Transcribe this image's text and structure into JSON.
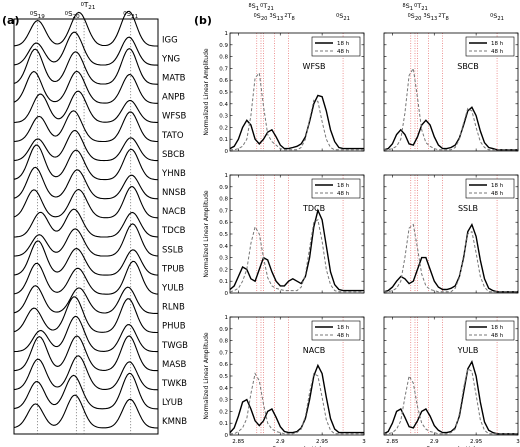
{
  "panels": {
    "a": {
      "label": "(a)"
    },
    "b": {
      "label": "(b)"
    }
  },
  "modes_a": [
    {
      "n": "0",
      "l": "S",
      "s": "19",
      "freq": 2.69
    },
    {
      "n": "0",
      "l": "S",
      "s": "20",
      "freq": 2.79
    },
    {
      "n": "0",
      "l": "T",
      "s": "21",
      "freq": 2.81
    },
    {
      "n": "0",
      "l": "S",
      "s": "21",
      "freq": 2.93
    }
  ],
  "modes_b": [
    {
      "n": "8",
      "l": "S",
      "s": "1",
      "freq": 2.872
    },
    {
      "n": "0",
      "l": "T",
      "s": "21",
      "freq": 2.877
    },
    {
      "n": "0",
      "l": "S",
      "s": "20",
      "freq": 2.88
    },
    {
      "n": "3",
      "l": "S",
      "s": "13",
      "freq": 2.893
    },
    {
      "n": "2",
      "l": "T",
      "s": "8",
      "freq": 2.91
    },
    {
      "n": "0",
      "l": "S",
      "s": "21",
      "freq": 2.975
    }
  ],
  "stations_a": [
    "IGG",
    "YNG",
    "MATB",
    "ANPB",
    "WFSB",
    "TATO",
    "SBCB",
    "YHNB",
    "NNSB",
    "NACB",
    "TDCB",
    "SSLB",
    "TPUB",
    "YULB",
    "RLNB",
    "PHUB",
    "TWGB",
    "MASB",
    "TWKB",
    "LYUB",
    "KMNB"
  ],
  "chart_data": {
    "type": "line",
    "xlabel": "Frequency(mHz)",
    "ylabel": "Normalized Linear Amplitude",
    "xlim": [
      2.84,
      3.0
    ],
    "ylim": [
      0,
      1
    ],
    "xticks": [
      "2.85",
      "2.9",
      "2.95",
      "3"
    ],
    "yticks": [
      "0",
      "0.1",
      "0.2",
      "0.3",
      "0.4",
      "0.5",
      "0.6",
      "0.7",
      "0.8",
      "0.9",
      "1"
    ],
    "grid": false,
    "legend_position": "top-right",
    "series_names": [
      "18 h",
      "48 h"
    ],
    "x": [
      2.84,
      2.845,
      2.85,
      2.855,
      2.86,
      2.865,
      2.87,
      2.875,
      2.88,
      2.885,
      2.89,
      2.895,
      2.9,
      2.905,
      2.91,
      2.915,
      2.92,
      2.925,
      2.93,
      2.935,
      2.94,
      2.945,
      2.95,
      2.955,
      2.96,
      2.965,
      2.97,
      2.975,
      2.98,
      2.985,
      2.99,
      2.995,
      3.0
    ],
    "panels": [
      {
        "station": "WFSB",
        "series": [
          {
            "name": "18 h",
            "values": [
              0.02,
              0.04,
              0.1,
              0.2,
              0.26,
              0.22,
              0.1,
              0.06,
              0.1,
              0.16,
              0.18,
              0.12,
              0.05,
              0.02,
              0.02,
              0.03,
              0.04,
              0.06,
              0.12,
              0.25,
              0.4,
              0.47,
              0.46,
              0.34,
              0.18,
              0.08,
              0.03,
              0.02,
              0.02,
              0.02,
              0.02,
              0.02,
              0.02
            ]
          },
          {
            "name": "48 h",
            "values": [
              0.01,
              0.01,
              0.02,
              0.04,
              0.1,
              0.3,
              0.62,
              0.66,
              0.38,
              0.14,
              0.08,
              0.05,
              0.02,
              0.01,
              0.01,
              0.01,
              0.01,
              0.03,
              0.1,
              0.27,
              0.43,
              0.42,
              0.25,
              0.1,
              0.03,
              0.01,
              0.01,
              0.01,
              0.01,
              0.01,
              0.01,
              0.01,
              0.01
            ]
          }
        ]
      },
      {
        "station": "SBCB",
        "series": [
          {
            "name": "18 h",
            "values": [
              0.01,
              0.02,
              0.06,
              0.14,
              0.18,
              0.14,
              0.06,
              0.05,
              0.12,
              0.22,
              0.26,
              0.22,
              0.12,
              0.05,
              0.02,
              0.02,
              0.03,
              0.05,
              0.11,
              0.22,
              0.34,
              0.37,
              0.3,
              0.17,
              0.07,
              0.03,
              0.02,
              0.01,
              0.01,
              0.01,
              0.01,
              0.01,
              0.01
            ]
          },
          {
            "name": "48 h",
            "values": [
              0.01,
              0.01,
              0.02,
              0.04,
              0.1,
              0.32,
              0.64,
              0.7,
              0.45,
              0.18,
              0.07,
              0.04,
              0.02,
              0.01,
              0.01,
              0.01,
              0.01,
              0.03,
              0.1,
              0.24,
              0.36,
              0.34,
              0.2,
              0.08,
              0.03,
              0.01,
              0.01,
              0.01,
              0.01,
              0.01,
              0.01,
              0.01,
              0.01
            ]
          }
        ]
      },
      {
        "station": "TDCB",
        "series": [
          {
            "name": "18 h",
            "values": [
              0.03,
              0.06,
              0.14,
              0.22,
              0.2,
              0.12,
              0.1,
              0.2,
              0.3,
              0.28,
              0.18,
              0.1,
              0.06,
              0.06,
              0.1,
              0.12,
              0.1,
              0.08,
              0.14,
              0.3,
              0.56,
              0.7,
              0.62,
              0.4,
              0.18,
              0.07,
              0.03,
              0.02,
              0.02,
              0.02,
              0.02,
              0.02,
              0.02
            ]
          },
          {
            "name": "48 h",
            "values": [
              0.01,
              0.02,
              0.04,
              0.1,
              0.2,
              0.42,
              0.56,
              0.5,
              0.3,
              0.13,
              0.06,
              0.04,
              0.03,
              0.02,
              0.02,
              0.02,
              0.02,
              0.05,
              0.16,
              0.38,
              0.6,
              0.62,
              0.44,
              0.2,
              0.07,
              0.02,
              0.01,
              0.01,
              0.01,
              0.01,
              0.01,
              0.01,
              0.01
            ]
          }
        ]
      },
      {
        "station": "SSLB",
        "series": [
          {
            "name": "18 h",
            "values": [
              0.01,
              0.02,
              0.05,
              0.1,
              0.14,
              0.12,
              0.08,
              0.1,
              0.2,
              0.3,
              0.3,
              0.2,
              0.1,
              0.05,
              0.03,
              0.03,
              0.04,
              0.06,
              0.14,
              0.3,
              0.52,
              0.58,
              0.48,
              0.28,
              0.12,
              0.04,
              0.02,
              0.01,
              0.01,
              0.01,
              0.01,
              0.01,
              0.01
            ]
          },
          {
            "name": "48 h",
            "values": [
              0.01,
              0.01,
              0.02,
              0.04,
              0.1,
              0.3,
              0.55,
              0.58,
              0.38,
              0.16,
              0.06,
              0.03,
              0.02,
              0.01,
              0.01,
              0.01,
              0.01,
              0.04,
              0.13,
              0.32,
              0.5,
              0.52,
              0.34,
              0.14,
              0.05,
              0.01,
              0.01,
              0.01,
              0.01,
              0.01,
              0.01,
              0.01,
              0.01
            ]
          }
        ]
      },
      {
        "station": "NACB",
        "series": [
          {
            "name": "18 h",
            "values": [
              0.02,
              0.06,
              0.16,
              0.28,
              0.3,
              0.22,
              0.12,
              0.08,
              0.12,
              0.2,
              0.22,
              0.15,
              0.07,
              0.03,
              0.02,
              0.02,
              0.03,
              0.06,
              0.14,
              0.3,
              0.5,
              0.59,
              0.52,
              0.32,
              0.14,
              0.05,
              0.02,
              0.02,
              0.02,
              0.02,
              0.02,
              0.02,
              0.02
            ]
          },
          {
            "name": "48 h",
            "values": [
              0.01,
              0.01,
              0.03,
              0.06,
              0.14,
              0.35,
              0.52,
              0.46,
              0.26,
              0.1,
              0.05,
              0.03,
              0.02,
              0.01,
              0.01,
              0.01,
              0.02,
              0.05,
              0.16,
              0.36,
              0.52,
              0.5,
              0.32,
              0.13,
              0.04,
              0.01,
              0.01,
              0.01,
              0.01,
              0.01,
              0.01,
              0.01,
              0.01
            ]
          }
        ]
      },
      {
        "station": "YULB",
        "series": [
          {
            "name": "18 h",
            "values": [
              0.01,
              0.03,
              0.1,
              0.2,
              0.22,
              0.15,
              0.07,
              0.06,
              0.12,
              0.2,
              0.22,
              0.16,
              0.08,
              0.04,
              0.02,
              0.02,
              0.03,
              0.06,
              0.16,
              0.36,
              0.56,
              0.62,
              0.5,
              0.28,
              0.11,
              0.04,
              0.02,
              0.01,
              0.01,
              0.01,
              0.01,
              0.01,
              0.01
            ]
          },
          {
            "name": "48 h",
            "values": [
              0.01,
              0.01,
              0.02,
              0.05,
              0.12,
              0.32,
              0.5,
              0.44,
              0.24,
              0.1,
              0.05,
              0.03,
              0.02,
              0.01,
              0.01,
              0.01,
              0.02,
              0.05,
              0.18,
              0.4,
              0.56,
              0.54,
              0.34,
              0.13,
              0.04,
              0.01,
              0.01,
              0.01,
              0.01,
              0.01,
              0.01,
              0.01,
              0.01
            ]
          }
        ]
      }
    ]
  }
}
